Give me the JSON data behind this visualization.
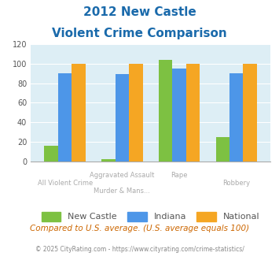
{
  "title_line1": "2012 New Castle",
  "title_line2": "Violent Crime Comparison",
  "new_castle": [
    16,
    2,
    104,
    25
  ],
  "indiana": [
    90,
    89,
    95,
    90
  ],
  "national": [
    100,
    100,
    100,
    100
  ],
  "bar_color_nc": "#7dc142",
  "bar_color_in": "#4d96e8",
  "bar_color_nat": "#f5a623",
  "ylim": [
    0,
    120
  ],
  "yticks": [
    0,
    20,
    40,
    60,
    80,
    100,
    120
  ],
  "bg_color": "#ddeef5",
  "fig_bg": "#ffffff",
  "title_color": "#1a6aab",
  "footer_text": "Compared to U.S. average. (U.S. average equals 100)",
  "footer_color": "#cc6600",
  "copyright_text": "© 2025 CityRating.com - https://www.cityrating.com/crime-statistics/",
  "copyright_color": "#888888",
  "legend_labels": [
    "New Castle",
    "Indiana",
    "National"
  ],
  "group_width": 0.72,
  "xlabel_top": [
    "",
    "Aggravated Assault",
    "Rape",
    ""
  ],
  "xlabel_bot": [
    "All Violent Crime",
    "Murder & Mans...",
    "",
    "Robbery"
  ]
}
